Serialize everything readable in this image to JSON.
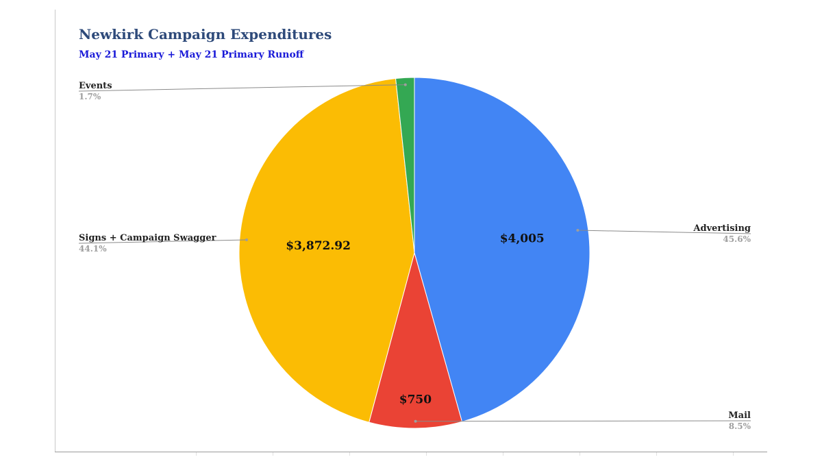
{
  "chart_data": {
    "type": "pie",
    "title": "Newkirk Campaign Expenditures",
    "subtitle": "May 21 Primary + May 21 Primary Runoff",
    "slices": [
      {
        "label": "Advertising",
        "value": 4005,
        "percent_label": "45.6%",
        "value_label": "$4,005",
        "color": "#4285f4"
      },
      {
        "label": "Mail",
        "value": 750,
        "percent_label": "8.5%",
        "value_label": "$750",
        "color": "#ea4335"
      },
      {
        "label": "Signs + Campaign Swagger",
        "value": 3872.92,
        "percent_label": "44.1%",
        "value_label": "$3,872.92",
        "color": "#fbbc04"
      },
      {
        "label": "Events",
        "value": 150,
        "percent_label": "1.7%",
        "value_label": "",
        "color": "#34a853"
      }
    ],
    "start_direction": "clockwise from top",
    "legend": "none"
  }
}
